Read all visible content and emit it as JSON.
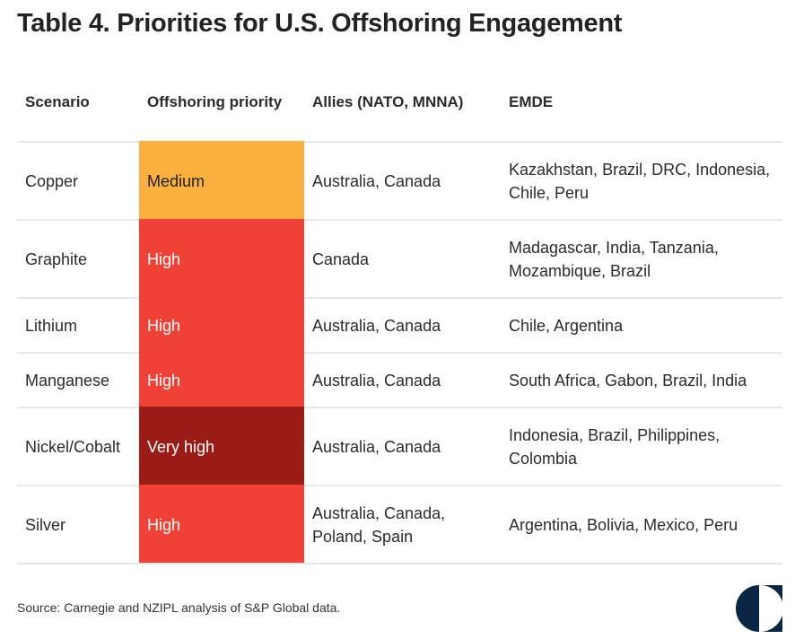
{
  "title": "Table 4. Priorities for U.S. Offshoring Engagement",
  "table": {
    "headers": [
      "Scenario",
      "Offshoring priority",
      "Allies (NATO, MNNA)",
      "EMDE"
    ],
    "rows": [
      {
        "scenario": "Copper",
        "priority": "Medium",
        "allies": "Australia, Canada",
        "emde": "Kazakhstan, Brazil, DRC, Indonesia, Chile, Peru",
        "color": "#FBB040",
        "height": 87
      },
      {
        "scenario": "Graphite",
        "priority": "High",
        "allies": "Canada",
        "emde": "Madagascar, India, Tanzania, Mozambique, Brazil",
        "color": "#EF4136",
        "height": 87
      },
      {
        "scenario": "Lithium",
        "priority": "High",
        "allies": "Australia, Canada",
        "emde": "Chile, Argentina",
        "color": "#EF4136",
        "height": 61
      },
      {
        "scenario": "Manganese",
        "priority": "High",
        "allies": "Australia, Canada",
        "emde": "South Africa, Gabon, Brazil, India",
        "color": "#EF4136",
        "height": 61
      },
      {
        "scenario": "Nickel/Cobalt",
        "priority": "Very high",
        "allies": "Australia, Canada",
        "emde": "Indonesia, Brazil, Philippines, Colombia",
        "color": "#9B1C17",
        "height": 87
      },
      {
        "scenario": "Silver",
        "priority": "High",
        "allies": "Australia, Canada, Poland, Spain",
        "emde": "Argentina, Bolivia, Mexico, Peru",
        "color": "#EF4136",
        "height": 87
      }
    ]
  },
  "source": "Source: Carnegie and NZIPL analysis of S&P Global data.",
  "logo": {
    "color": "#0B2545"
  }
}
